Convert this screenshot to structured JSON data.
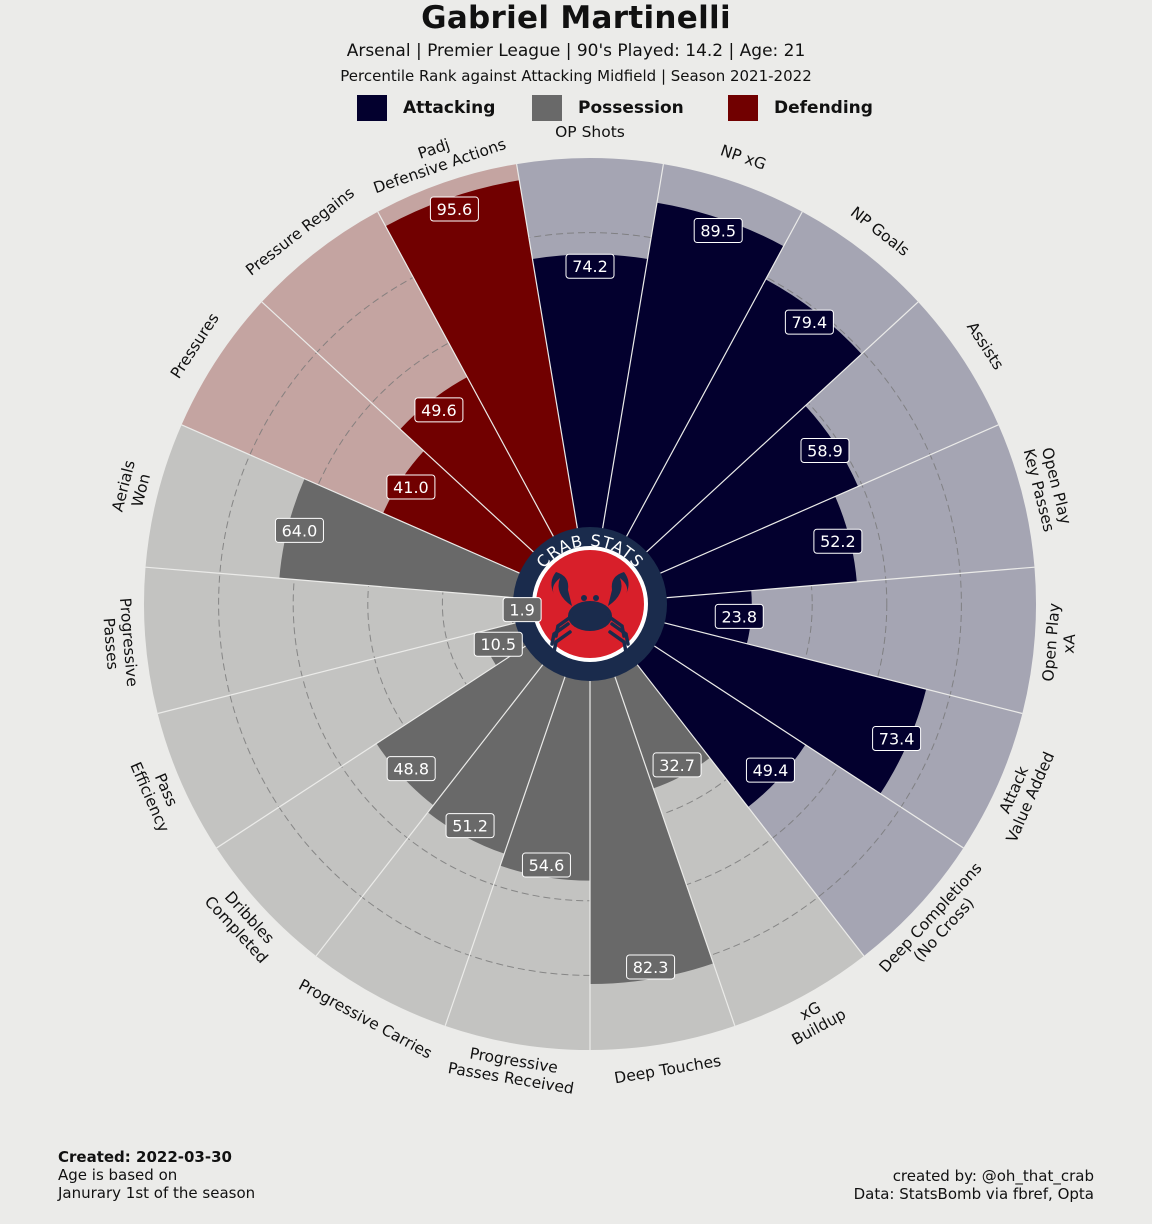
{
  "header": {
    "title": "Gabriel Martinelli",
    "subtitle": "Arsenal  | Premier League | 90's Played: 14.2 | Age: 21",
    "subtitle2": "Percentile Rank against Attacking Midfield  | Season 2021-2022"
  },
  "legend": {
    "attacking": "Attacking",
    "possession": "Possession",
    "defending": "Defending"
  },
  "colors": {
    "attacking": "#03002e",
    "attacking_bg": "#a5a5b3",
    "possession": "#696969",
    "possession_bg": "#c3c3c1",
    "defending": "#710000",
    "defending_bg": "#c4a4a1",
    "background": "#ebebe9",
    "logo_ring": "#1a2b4c",
    "logo_inner": "#d81f2a"
  },
  "logo": {
    "text": "CRAB STATS"
  },
  "footer": {
    "created": "Created: 2022-03-30",
    "age_note_1": "Age is based on",
    "age_note_2": "Janurary 1st of the season",
    "credit": "created by: @oh_that_crab",
    "source": "Data: StatsBomb via fbref, Opta"
  },
  "chart_data": {
    "type": "pie",
    "subtype": "polar-bar",
    "range": [
      0,
      100
    ],
    "grid": true,
    "categories": [
      {
        "label": "OP Shots",
        "value": 74.2,
        "group": "attacking"
      },
      {
        "label": "NP xG",
        "value": 89.5,
        "group": "attacking"
      },
      {
        "label": "NP Goals",
        "value": 79.4,
        "group": "attacking"
      },
      {
        "label": "Assists",
        "value": 58.9,
        "group": "attacking"
      },
      {
        "label": "Open Play\nKey Passes",
        "value": 52.2,
        "group": "attacking"
      },
      {
        "label": "Open Play\nxA",
        "value": 23.8,
        "group": "attacking"
      },
      {
        "label": "Attack\nValue Added",
        "value": 73.4,
        "group": "attacking"
      },
      {
        "label": "Deep Completions\n(No Cross)",
        "value": 49.4,
        "group": "attacking"
      },
      {
        "label": "xG\nBuildup",
        "value": 32.7,
        "group": "possession"
      },
      {
        "label": "Deep Touches",
        "value": 82.3,
        "group": "possession"
      },
      {
        "label": "Progressive\nPasses Received",
        "value": 54.6,
        "group": "possession"
      },
      {
        "label": "Progressive Carries",
        "value": 51.2,
        "group": "possession"
      },
      {
        "label": "Dribbles\nCompleted",
        "value": 48.8,
        "group": "possession"
      },
      {
        "label": "Pass\nEfficiency",
        "value": 10.5,
        "group": "possession"
      },
      {
        "label": "Progressive\nPasses",
        "value": 1.9,
        "group": "possession"
      },
      {
        "label": "Aerials\nWon",
        "value": 64.0,
        "group": "possession"
      },
      {
        "label": "Pressures",
        "value": 41.0,
        "group": "defending"
      },
      {
        "label": "Pressure Regains",
        "value": 49.6,
        "group": "defending"
      },
      {
        "label": "Padj\nDefensive Actions",
        "value": 95.6,
        "group": "defending"
      }
    ]
  }
}
